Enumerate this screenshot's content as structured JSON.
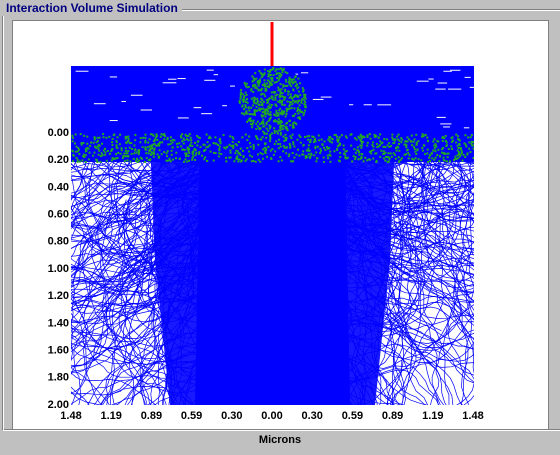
{
  "window": {
    "title": "Interaction Volume Simulation"
  },
  "plot": {
    "y_tick_labels": [
      "0.00",
      "0.20",
      "0.40",
      "0.60",
      "0.80",
      "1.00",
      "1.20",
      "1.40",
      "1.60",
      "1.80",
      "2.00"
    ],
    "x_tick_labels": [
      "1.48",
      "1.19",
      "0.89",
      "0.59",
      "0.30",
      "0.00",
      "0.30",
      "0.59",
      "0.89",
      "1.19",
      "1.48"
    ],
    "x_axis_label": "Microns"
  }
}
